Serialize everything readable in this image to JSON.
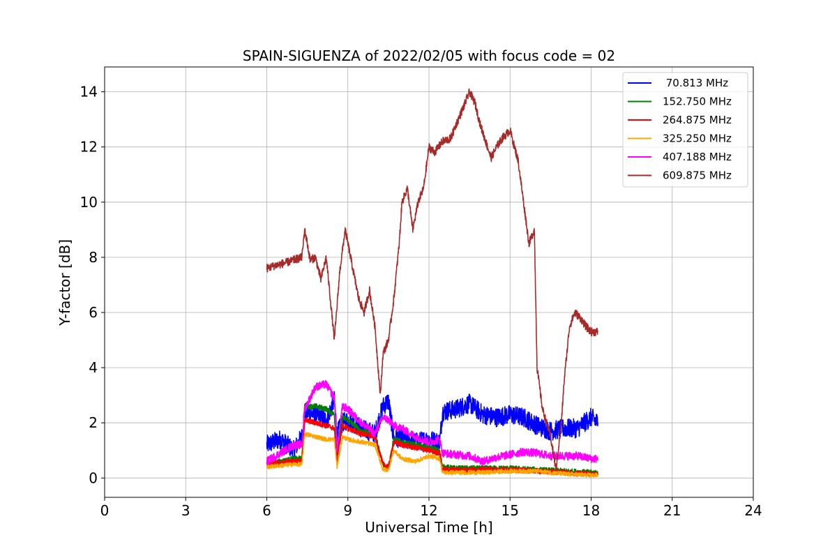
{
  "chart_data": {
    "type": "line",
    "title": "SPAIN-SIGUENZA of 2022/02/05 with focus code = 02",
    "xlabel": "Universal Time [h]",
    "ylabel": "Y-factor [dB]",
    "xlim": [
      0,
      24
    ],
    "ylim": [
      -0.7,
      14.9
    ],
    "xticks": [
      0,
      3,
      6,
      9,
      12,
      15,
      18,
      21,
      24
    ],
    "yticks": [
      0,
      2,
      4,
      6,
      8,
      10,
      12,
      14
    ],
    "grid": true,
    "legend_position": "top-right",
    "series": [
      {
        "name": " 70.813 MHz",
        "color": "#0000ff",
        "noise": 0.35,
        "x": [
          6.0,
          6.5,
          7.0,
          7.3,
          7.4,
          7.8,
          8.2,
          8.5,
          8.6,
          8.8,
          9.0,
          9.5,
          10.0,
          10.3,
          10.5,
          10.7,
          11.0,
          11.5,
          12.0,
          12.4,
          12.5,
          13.0,
          13.5,
          14.0,
          14.5,
          15.0,
          15.5,
          16.0,
          16.5,
          17.0,
          17.5,
          18.0,
          18.25
        ],
        "y": [
          1.2,
          1.4,
          1.0,
          1.5,
          2.4,
          2.3,
          2.1,
          2.8,
          1.6,
          2.0,
          2.1,
          1.8,
          1.6,
          2.6,
          2.8,
          1.4,
          1.5,
          1.3,
          1.4,
          1.3,
          2.4,
          2.5,
          2.7,
          2.3,
          2.2,
          2.3,
          2.2,
          1.9,
          1.7,
          1.8,
          1.8,
          2.2,
          2.0
        ]
      },
      {
        "name": "152.750 MHz",
        "color": "#008000",
        "noise": 0.1,
        "x": [
          6.0,
          6.5,
          7.0,
          7.3,
          7.4,
          7.8,
          8.2,
          8.5,
          8.6,
          8.8,
          9.0,
          9.5,
          10.0,
          10.3,
          10.5,
          10.7,
          11.0,
          11.5,
          12.0,
          12.4,
          12.5,
          13.0,
          14.0,
          15.0,
          16.0,
          17.0,
          18.0,
          18.25
        ],
        "y": [
          0.5,
          0.6,
          0.7,
          0.7,
          2.6,
          2.6,
          2.5,
          2.3,
          0.8,
          2.2,
          2.1,
          1.7,
          1.6,
          0.5,
          0.4,
          1.4,
          1.3,
          1.2,
          1.1,
          1.0,
          0.4,
          0.35,
          0.35,
          0.35,
          0.3,
          0.25,
          0.2,
          0.2
        ]
      },
      {
        "name": "264.875 MHz",
        "color": "#ff0000",
        "noise": 0.1,
        "x": [
          6.0,
          6.5,
          7.0,
          7.3,
          7.4,
          7.8,
          8.2,
          8.5,
          8.6,
          8.8,
          9.0,
          9.5,
          10.0,
          10.3,
          10.5,
          10.7,
          11.0,
          11.5,
          12.0,
          12.4,
          12.5,
          13.0,
          14.0,
          15.0,
          16.0,
          17.0,
          18.0,
          18.25
        ],
        "y": [
          0.5,
          0.55,
          0.6,
          0.6,
          2.1,
          2.0,
          1.9,
          1.8,
          0.7,
          1.9,
          1.8,
          1.6,
          1.5,
          0.5,
          0.4,
          1.3,
          1.2,
          1.1,
          1.0,
          0.9,
          0.3,
          0.3,
          0.3,
          0.3,
          0.25,
          0.2,
          0.15,
          0.15
        ]
      },
      {
        "name": "325.250 MHz",
        "color": "#ffa500",
        "noise": 0.08,
        "x": [
          6.0,
          6.5,
          7.0,
          7.3,
          7.4,
          7.8,
          8.2,
          8.5,
          8.6,
          8.8,
          9.0,
          9.5,
          10.0,
          10.3,
          10.5,
          10.7,
          11.0,
          11.5,
          12.0,
          12.4,
          12.5,
          13.0,
          14.0,
          15.0,
          16.0,
          17.0,
          18.0,
          18.25
        ],
        "y": [
          0.4,
          0.45,
          0.5,
          0.5,
          1.6,
          1.5,
          1.4,
          1.4,
          0.4,
          1.5,
          1.4,
          1.3,
          1.2,
          0.3,
          0.3,
          1.0,
          0.7,
          0.6,
          0.8,
          0.7,
          0.2,
          0.2,
          0.2,
          0.25,
          0.25,
          0.15,
          0.1,
          0.1
        ]
      },
      {
        "name": "407.188 MHz",
        "color": "#ff00ff",
        "noise": 0.15,
        "x": [
          6.0,
          6.5,
          7.0,
          7.3,
          7.4,
          7.8,
          8.2,
          8.5,
          8.6,
          8.8,
          9.0,
          9.5,
          10.0,
          10.3,
          10.5,
          10.7,
          11.0,
          11.5,
          12.0,
          12.4,
          12.5,
          13.0,
          13.5,
          14.0,
          14.5,
          15.0,
          15.5,
          16.0,
          16.5,
          17.0,
          17.5,
          18.0,
          18.25
        ],
        "y": [
          0.6,
          0.9,
          1.2,
          1.2,
          2.5,
          3.3,
          3.4,
          2.9,
          1.0,
          2.6,
          2.5,
          2.0,
          1.6,
          2.2,
          2.1,
          1.9,
          1.8,
          1.5,
          1.3,
          1.4,
          0.9,
          0.85,
          0.8,
          0.6,
          0.75,
          0.85,
          0.95,
          0.9,
          0.8,
          0.8,
          0.8,
          0.7,
          0.7
        ]
      },
      {
        "name": "609.875 MHz",
        "color": "#a52a2a",
        "noise": 0.15,
        "x": [
          6.0,
          6.3,
          6.7,
          7.0,
          7.3,
          7.4,
          7.5,
          7.6,
          7.8,
          8.0,
          8.2,
          8.5,
          8.7,
          8.9,
          9.0,
          9.2,
          9.4,
          9.6,
          9.8,
          10.0,
          10.2,
          10.3,
          10.5,
          10.7,
          10.9,
          11.0,
          11.2,
          11.4,
          11.6,
          11.8,
          12.0,
          12.2,
          12.5,
          12.8,
          13.0,
          13.3,
          13.5,
          13.7,
          13.9,
          14.1,
          14.3,
          14.5,
          14.7,
          15.0,
          15.3,
          15.5,
          15.7,
          15.9,
          16.0,
          16.2,
          16.5,
          16.7,
          16.9,
          17.0,
          17.2,
          17.4,
          17.6,
          17.8,
          18.0,
          18.25
        ],
        "y": [
          7.6,
          7.7,
          7.8,
          7.9,
          8.0,
          9.0,
          8.5,
          7.9,
          8.0,
          7.2,
          8.0,
          5.0,
          7.5,
          9.0,
          8.5,
          7.5,
          6.5,
          6.0,
          6.8,
          5.5,
          3.0,
          4.5,
          5.0,
          6.5,
          8.5,
          10.0,
          10.5,
          9.0,
          10.0,
          10.5,
          12.0,
          11.8,
          12.2,
          12.3,
          12.8,
          13.5,
          14.0,
          13.6,
          12.8,
          12.2,
          11.6,
          12.0,
          12.3,
          12.6,
          11.5,
          10.0,
          8.5,
          9.0,
          4.0,
          2.5,
          1.5,
          0.3,
          2.0,
          3.5,
          5.5,
          6.0,
          5.8,
          5.5,
          5.3,
          5.3
        ]
      }
    ]
  }
}
